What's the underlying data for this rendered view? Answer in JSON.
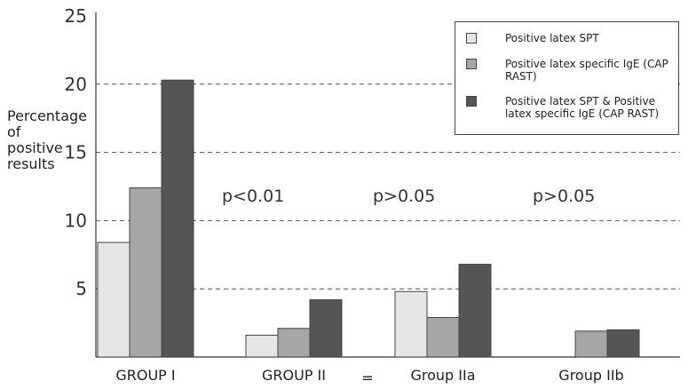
{
  "chart_data": {
    "type": "bar",
    "categories": [
      "GROUP I",
      "GROUP II",
      "Group IIa",
      "Group IIb"
    ],
    "series": [
      {
        "name": "Positive latex SPT",
        "color": "#e6e6e6",
        "values": [
          8.4,
          1.6,
          4.8,
          0
        ]
      },
      {
        "name": "Positive latex specific IgE (CAP RAST)",
        "color": "#a6a6a6",
        "values": [
          12.4,
          2.1,
          2.9,
          1.9
        ]
      },
      {
        "name": "Positive latex SPT & Positive latex specific IgE (CAP RAST)",
        "color": "#555555",
        "values": [
          20.3,
          4.2,
          6.8,
          2.0
        ]
      }
    ],
    "ylim": [
      0,
      25
    ],
    "yticks": [
      "5",
      "10",
      "15",
      "20",
      "25"
    ],
    "ylabel": [
      "Percentage",
      "of",
      "positive",
      "results"
    ],
    "grid": "dashed horizontal",
    "legend_position": "top-right",
    "annotations": [
      {
        "text": "p<0.01",
        "between": [
          "GROUP I",
          "GROUP II"
        ]
      },
      {
        "text": "p>0.05",
        "between": [
          "GROUP II",
          "Group IIa"
        ]
      },
      {
        "text": "p>0.05",
        "between": [
          "Group IIa",
          "Group IIb"
        ]
      }
    ],
    "equals_sign": "="
  }
}
